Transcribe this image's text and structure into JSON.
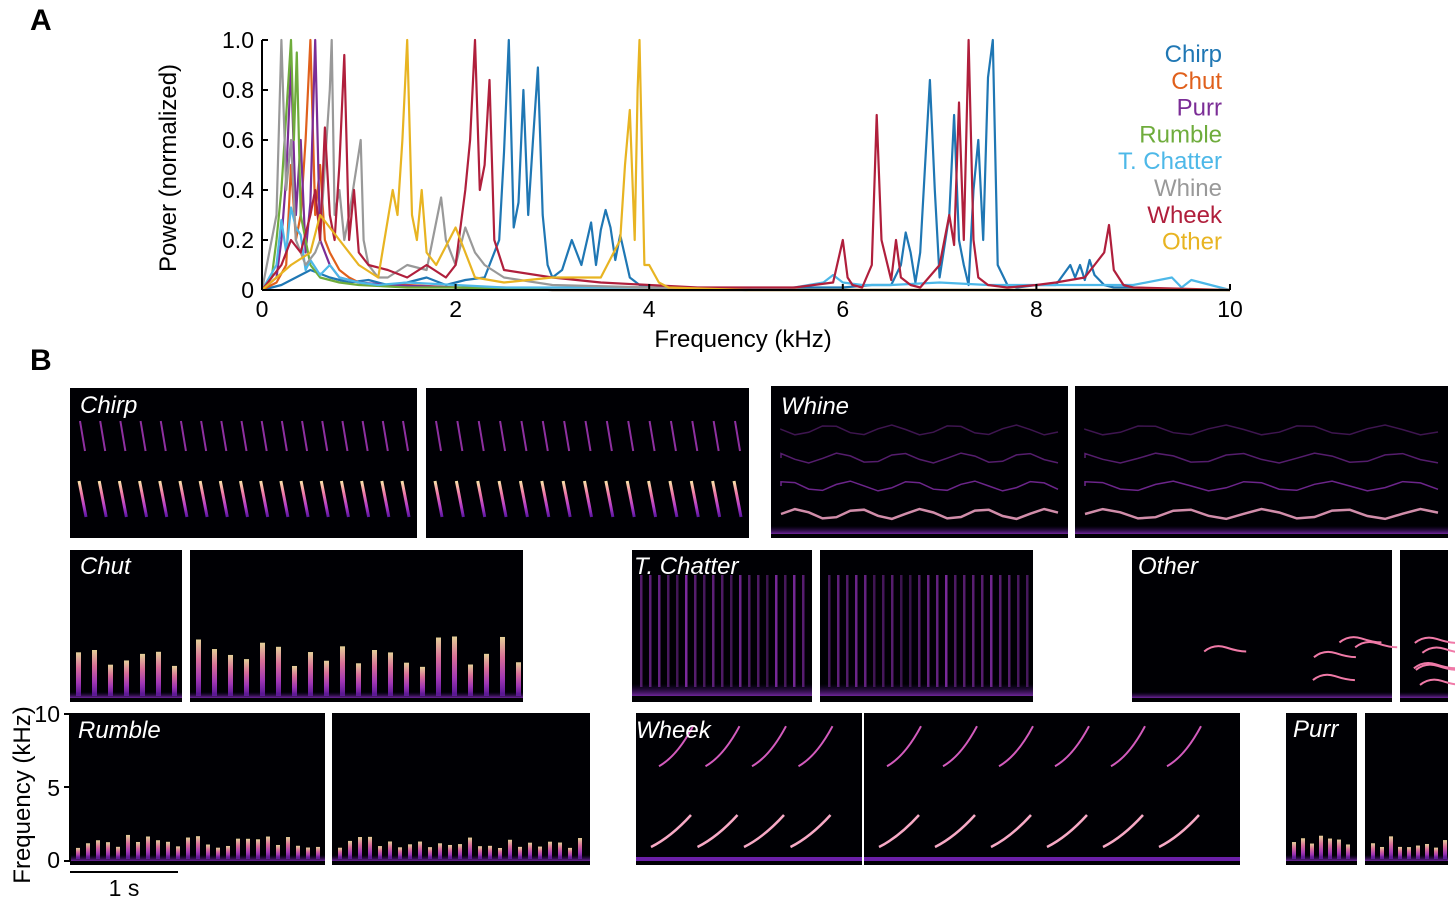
{
  "panels": {
    "a": "A",
    "b": "B"
  },
  "chart_data": [
    {
      "type": "line",
      "xlabel": "Frequency (kHz)",
      "ylabel": "Power (normalized)",
      "xlim": [
        0,
        10
      ],
      "ylim": [
        0,
        1
      ],
      "xticks": [
        "0",
        "2",
        "4",
        "6",
        "8",
        "10"
      ],
      "yticks": [
        "0",
        "0.2",
        "0.4",
        "0.6",
        "0.8",
        "1.0"
      ],
      "legend_position": "top-right",
      "grid": false,
      "series": [
        {
          "name": "Chirp",
          "color": "#1f77b4",
          "x": [
            0,
            0.2,
            0.35,
            0.5,
            0.7,
            0.9,
            1.1,
            1.3,
            1.5,
            1.7,
            1.9,
            2.1,
            2.3,
            2.45,
            2.5,
            2.55,
            2.6,
            2.65,
            2.7,
            2.75,
            2.8,
            2.85,
            2.9,
            2.95,
            3.0,
            3.1,
            3.2,
            3.3,
            3.4,
            3.45,
            3.5,
            3.55,
            3.6,
            3.65,
            3.7,
            3.8,
            3.9,
            4.0,
            4.3,
            5,
            5.5,
            6.0,
            6.3,
            6.5,
            6.6,
            6.65,
            6.7,
            6.75,
            6.8,
            6.85,
            6.9,
            6.95,
            7.0,
            7.1,
            7.15,
            7.2,
            7.25,
            7.3,
            7.35,
            7.4,
            7.45,
            7.5,
            7.55,
            7.6,
            7.7,
            7.8,
            8.0,
            8.2,
            8.35,
            8.4,
            8.45,
            8.5,
            8.55,
            8.6,
            8.7,
            8.8,
            9.0,
            9.5,
            10
          ],
          "y": [
            0,
            0.02,
            0.05,
            0.08,
            0.05,
            0.03,
            0.04,
            0.02,
            0.03,
            0.05,
            0.02,
            0.04,
            0.05,
            0.2,
            0.55,
            1.0,
            0.25,
            0.35,
            0.8,
            0.3,
            0.6,
            0.89,
            0.3,
            0.1,
            0.05,
            0.08,
            0.2,
            0.1,
            0.27,
            0.1,
            0.24,
            0.32,
            0.25,
            0.12,
            0.22,
            0.05,
            0.02,
            0.01,
            0.01,
            0.0,
            0.01,
            0.01,
            0.02,
            0.02,
            0.1,
            0.23,
            0.15,
            0.03,
            0.15,
            0.5,
            0.84,
            0.4,
            0.05,
            0.3,
            0.7,
            0.2,
            0.1,
            0.02,
            0.4,
            0.6,
            0.2,
            0.85,
            1.0,
            0.1,
            0.02,
            0.01,
            0.02,
            0.02,
            0.1,
            0.05,
            0.1,
            0.04,
            0.12,
            0.06,
            0.02,
            0.01,
            0.01,
            0.0,
            0.0
          ]
        },
        {
          "name": "Chut",
          "color": "#e0601c",
          "x": [
            0,
            0.15,
            0.25,
            0.3,
            0.35,
            0.4,
            0.45,
            0.5,
            0.55,
            0.6,
            0.65,
            0.7,
            0.8,
            0.9,
            1.0,
            1.2,
            1.5,
            2,
            2.5,
            3,
            4,
            5,
            6,
            7,
            8,
            9,
            10
          ],
          "y": [
            0,
            0.03,
            0.1,
            0.5,
            0.2,
            0.3,
            0.6,
            1.0,
            0.3,
            0.5,
            0.2,
            0.15,
            0.08,
            0.05,
            0.03,
            0.02,
            0.02,
            0.01,
            0.01,
            0.0,
            0.0,
            0.0,
            0.0,
            0.0,
            0.0,
            0.0,
            0.0
          ]
        },
        {
          "name": "Purr",
          "color": "#7b2d96",
          "x": [
            0,
            0.15,
            0.2,
            0.25,
            0.3,
            0.35,
            0.4,
            0.45,
            0.5,
            0.55,
            0.6,
            0.7,
            0.8,
            1.0,
            1.3,
            2,
            3,
            4,
            5,
            6,
            7,
            8,
            9,
            10
          ],
          "y": [
            0,
            0.05,
            0.2,
            0.45,
            0.9,
            0.3,
            0.6,
            0.15,
            0.35,
            1.0,
            0.2,
            0.1,
            0.05,
            0.03,
            0.02,
            0.01,
            0.0,
            0.0,
            0.0,
            0.0,
            0.0,
            0.0,
            0.0,
            0.0
          ]
        },
        {
          "name": "Rumble",
          "color": "#6fac3c",
          "x": [
            0,
            0.1,
            0.15,
            0.2,
            0.25,
            0.3,
            0.33,
            0.36,
            0.4,
            0.45,
            0.5,
            0.6,
            0.8,
            1.0,
            1.5,
            2,
            3,
            4,
            5,
            6,
            7,
            8,
            9,
            10
          ],
          "y": [
            0,
            0.05,
            0.2,
            0.4,
            0.7,
            1.0,
            0.6,
            0.95,
            0.3,
            0.2,
            0.1,
            0.05,
            0.03,
            0.02,
            0.01,
            0.01,
            0.0,
            0.0,
            0.0,
            0.0,
            0.0,
            0.0,
            0.0,
            0.0
          ]
        },
        {
          "name": "T. Chatter",
          "color": "#4db8e8",
          "x": [
            0,
            0.15,
            0.2,
            0.25,
            0.3,
            0.35,
            0.4,
            0.45,
            0.5,
            0.6,
            0.7,
            0.8,
            0.9,
            1.0,
            1.2,
            1.5,
            2,
            2.5,
            3,
            4,
            5,
            5.5,
            5.8,
            5.9,
            6.0,
            6.2,
            6.5,
            7.0,
            7.5,
            8.0,
            8.5,
            9.0,
            9.4,
            9.5,
            9.6,
            10
          ],
          "y": [
            0,
            0.1,
            0.28,
            0.15,
            0.33,
            0.25,
            0.22,
            0.08,
            0.12,
            0.06,
            0.1,
            0.05,
            0.04,
            0.03,
            0.02,
            0.03,
            0.02,
            0.01,
            0.01,
            0.01,
            0.0,
            0.01,
            0.03,
            0.06,
            0.03,
            0.02,
            0.02,
            0.03,
            0.02,
            0.02,
            0.02,
            0.02,
            0.05,
            0.01,
            0.04,
            0.0
          ]
        },
        {
          "name": "Whine",
          "color": "#999999",
          "x": [
            0,
            0.15,
            0.2,
            0.25,
            0.3,
            0.35,
            0.45,
            0.55,
            0.6,
            0.65,
            0.7,
            0.72,
            0.75,
            0.8,
            0.85,
            0.9,
            1.0,
            1.02,
            1.05,
            1.1,
            1.2,
            1.3,
            1.5,
            1.7,
            1.85,
            1.9,
            2.0,
            2.1,
            2.2,
            2.3,
            2.5,
            3,
            4,
            5,
            6,
            7,
            8,
            9,
            10
          ],
          "y": [
            0,
            0.3,
            1.0,
            0.4,
            0.6,
            0.2,
            0.1,
            0.15,
            0.2,
            0.5,
            0.8,
            1.0,
            0.3,
            0.4,
            0.2,
            0.3,
            0.55,
            0.6,
            0.2,
            0.1,
            0.05,
            0.05,
            0.1,
            0.08,
            0.37,
            0.2,
            0.1,
            0.25,
            0.15,
            0.1,
            0.05,
            0.02,
            0.01,
            0.0,
            0.0,
            0.0,
            0.0,
            0.0,
            0.0
          ]
        },
        {
          "name": "Wheek",
          "color": "#b01f3c",
          "x": [
            0,
            0.2,
            0.3,
            0.4,
            0.5,
            0.55,
            0.6,
            0.65,
            0.7,
            0.75,
            0.8,
            0.85,
            0.9,
            0.95,
            1.0,
            1.1,
            1.3,
            1.5,
            1.7,
            1.9,
            2.0,
            2.1,
            2.15,
            2.2,
            2.25,
            2.3,
            2.35,
            2.4,
            2.5,
            3,
            3.5,
            4,
            4.5,
            5,
            5.5,
            5.9,
            6.0,
            6.05,
            6.1,
            6.2,
            6.3,
            6.35,
            6.4,
            6.5,
            6.55,
            6.6,
            6.7,
            6.8,
            7.0,
            7.1,
            7.15,
            7.2,
            7.25,
            7.3,
            7.35,
            7.4,
            7.5,
            7.7,
            8.0,
            8.2,
            8.5,
            8.6,
            8.7,
            8.75,
            8.8,
            8.9,
            9,
            10
          ],
          "y": [
            0,
            0.1,
            0.2,
            0.15,
            0.3,
            0.4,
            0.2,
            0.65,
            0.3,
            0.2,
            0.5,
            0.94,
            0.2,
            0.4,
            0.15,
            0.1,
            0.08,
            0.05,
            0.1,
            0.05,
            0.1,
            0.4,
            0.6,
            1.0,
            0.4,
            0.5,
            0.84,
            0.2,
            0.08,
            0.05,
            0.03,
            0.02,
            0.01,
            0.01,
            0.01,
            0.03,
            0.2,
            0.05,
            0.02,
            0.01,
            0.1,
            0.7,
            0.2,
            0.04,
            0.2,
            0.05,
            0.02,
            0.01,
            0.1,
            0.3,
            0.18,
            0.75,
            0.2,
            1.0,
            0.2,
            0.05,
            0.02,
            0.01,
            0.02,
            0.03,
            0.05,
            0.1,
            0.15,
            0.26,
            0.08,
            0.02,
            0.01,
            0.0
          ]
        },
        {
          "name": "Other",
          "color": "#e8b422",
          "x": [
            0,
            0.3,
            0.5,
            0.6,
            0.7,
            0.8,
            1.0,
            1.2,
            1.35,
            1.4,
            1.45,
            1.5,
            1.55,
            1.6,
            1.65,
            1.7,
            1.8,
            2.0,
            2.2,
            2.5,
            3.0,
            3.5,
            3.7,
            3.75,
            3.8,
            3.85,
            3.88,
            3.9,
            3.95,
            4.0,
            4.1,
            4.2,
            5,
            6,
            7,
            8,
            9,
            10
          ],
          "y": [
            0,
            0.1,
            0.15,
            0.3,
            0.25,
            0.2,
            0.1,
            0.05,
            0.4,
            0.3,
            0.6,
            1.0,
            0.3,
            0.2,
            0.4,
            0.15,
            0.1,
            0.25,
            0.05,
            0.03,
            0.05,
            0.05,
            0.2,
            0.5,
            0.72,
            0.2,
            0.8,
            1.0,
            0.1,
            0.1,
            0.03,
            0.01,
            0.0,
            0.0,
            0.0,
            0.0,
            0.0,
            0.0
          ]
        }
      ]
    },
    {
      "type": "heatmap",
      "ylabel": "Frequency (kHz)",
      "yticks": [
        "0",
        "5",
        "10"
      ],
      "ylim": [
        0,
        10
      ],
      "scalebar_label": "1 s",
      "scalebar_seconds": 1,
      "colormap": "magma",
      "spectrograms": [
        {
          "label": "Chirp",
          "kind": "chirp",
          "panels": 2
        },
        {
          "label": "Whine",
          "kind": "whine",
          "panels": 2
        },
        {
          "label": "Chut",
          "kind": "chut",
          "panels": 2
        },
        {
          "label": "T. Chatter",
          "kind": "chatter",
          "panels": 2
        },
        {
          "label": "Other",
          "kind": "other",
          "panels": 2
        },
        {
          "label": "Rumble",
          "kind": "rumble",
          "panels": 2
        },
        {
          "label": "Wheek",
          "kind": "wheek",
          "panels": 2
        },
        {
          "label": "Purr",
          "kind": "purr",
          "panels": 2
        }
      ]
    }
  ]
}
